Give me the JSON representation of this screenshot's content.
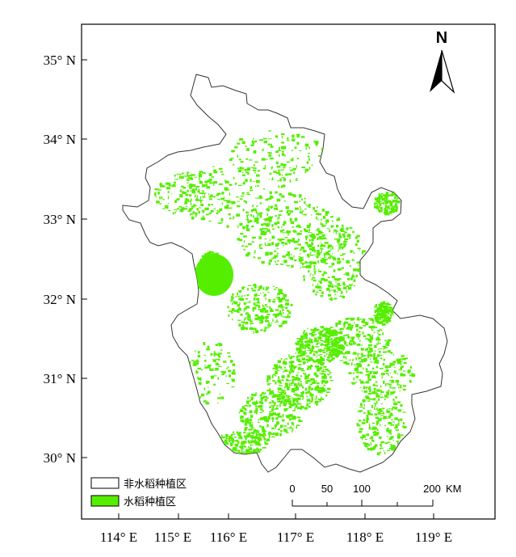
{
  "map": {
    "lat_labels": [
      "35° N",
      "34° N",
      "33° N",
      "32° N",
      "31° N",
      "30° N"
    ],
    "lon_labels": [
      "114° E",
      "115° E",
      "116° E",
      "117° E",
      "118° E",
      "119° E"
    ],
    "north_label": "N",
    "legend": [
      {
        "label": "非水稻种植区",
        "color": "#ffffff"
      },
      {
        "label": "水稻种植区",
        "color": "#55ee00"
      }
    ],
    "scale": {
      "ticks": [
        "0",
        "50",
        "100",
        "200"
      ],
      "unit": "KM"
    },
    "colors": {
      "rice": "#55ee00",
      "outline": "#333333",
      "frame": "#000000"
    }
  }
}
